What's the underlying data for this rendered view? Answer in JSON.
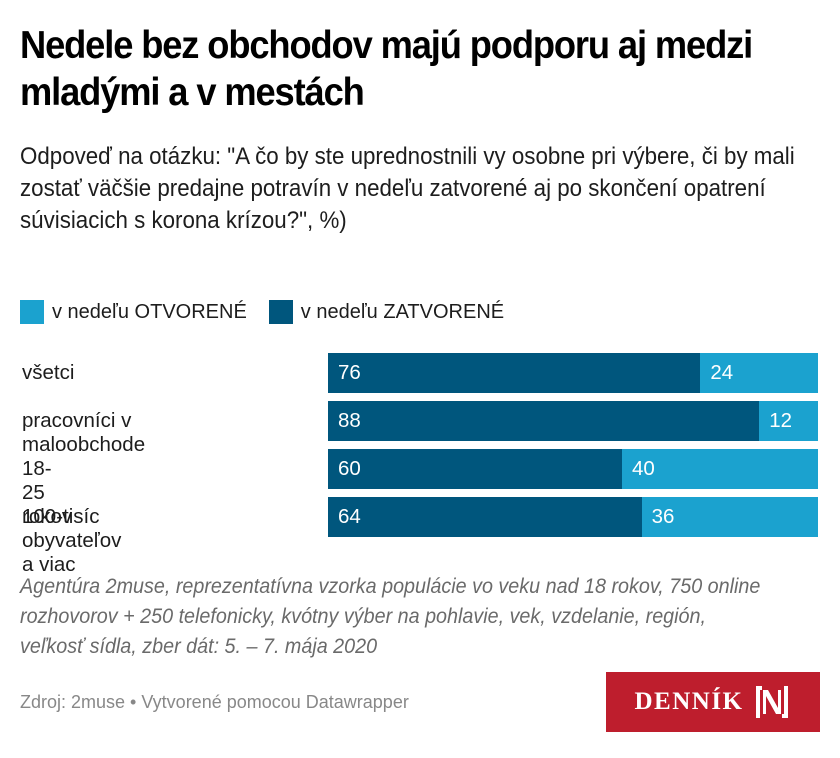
{
  "colors": {
    "open": "#1ba2cf",
    "closed": "#00567d",
    "brand": "#be1e2d"
  },
  "chart_data": {
    "type": "bar",
    "orientation": "horizontal",
    "stacked": true,
    "title": "Nedele bez obchodov majú podporu aj medzi mladými a v mestách",
    "subtitle": "Odpoveď na otázku: \"A čo by ste uprednostnili vy osobne pri výbere, či by mali zostať väčšie predajne potravín v nedeľu zatvorené aj po skončení opatrení súvisiacich s korona krízou?\", %)",
    "categories": [
      "všetci",
      "pracovníci v maloobchode",
      "18-25 rokov",
      "100-tisíc obyvateľov a viac"
    ],
    "series": [
      {
        "name": "v nedeľu ZATVORENÉ",
        "color_key": "closed",
        "values": [
          76,
          88,
          60,
          64
        ]
      },
      {
        "name": "v nedeľu OTVORENÉ",
        "color_key": "open",
        "values": [
          24,
          12,
          40,
          36
        ]
      }
    ],
    "legend": [
      {
        "label": "v nedeľu OTVORENÉ",
        "color_key": "open"
      },
      {
        "label": "v nedeľu ZATVORENÉ",
        "color_key": "closed"
      }
    ],
    "legend_position": "top-left",
    "xlim": [
      0,
      100
    ],
    "xlabel": "",
    "ylabel": "",
    "grid": false
  },
  "notes": "Agentúra 2muse, reprezentatívna vzorka populácie vo veku nad 18 rokov, 750 online rozhovorov + 250 telefonicky, kvótny výber na pohlavie, vek, vzdelanie, región, veľkosť sídla, zber dát: 5. – 7. mája 2020",
  "footer": {
    "source": "Zdroj: 2muse • Vytvorené pomocou Datawrapper",
    "logo_text": "DENNÍK",
    "logo_icon": "N-bracket-logo-icon"
  }
}
